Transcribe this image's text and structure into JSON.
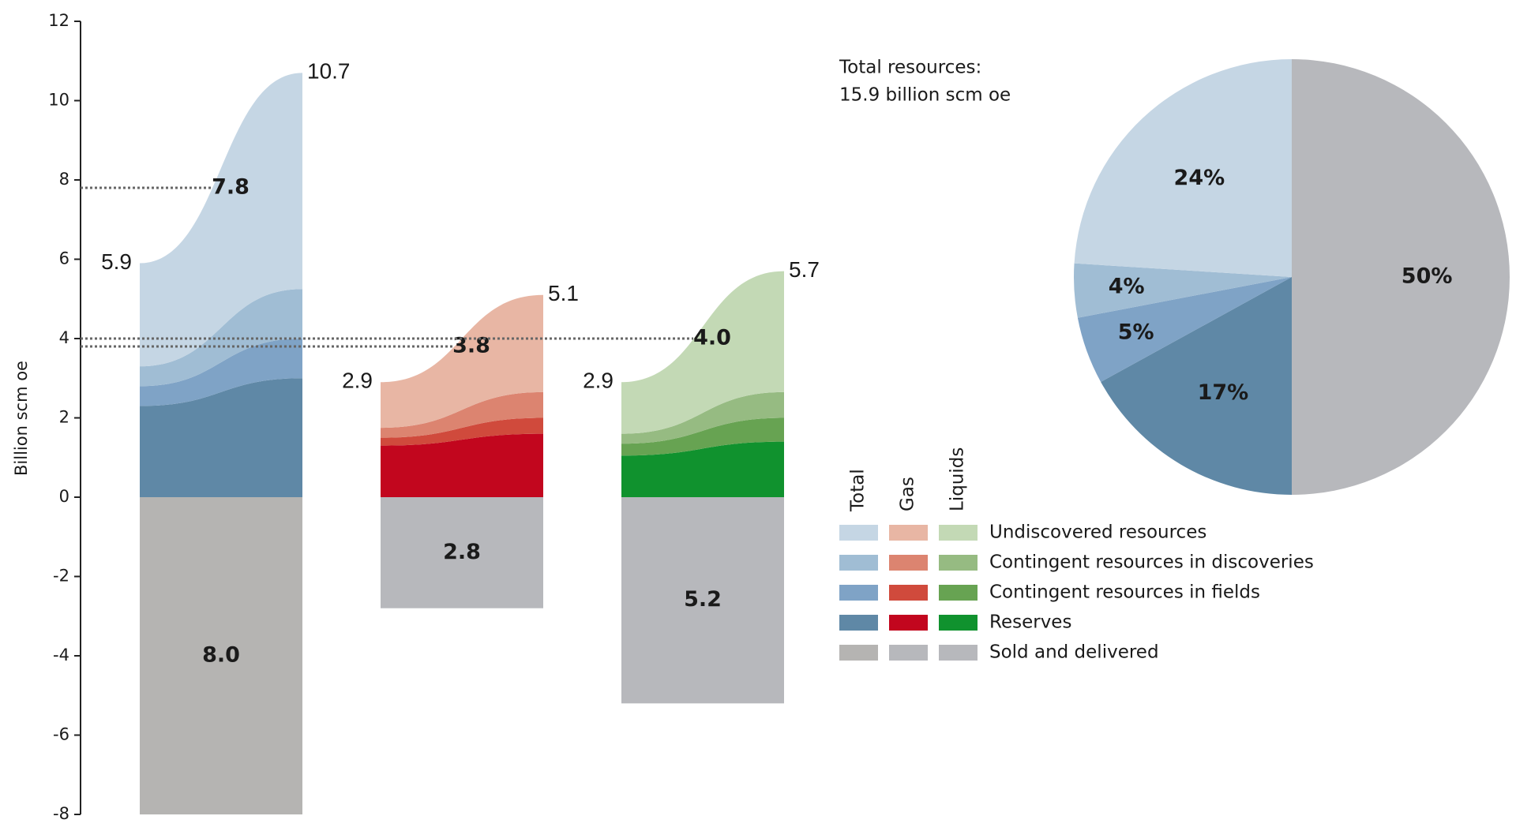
{
  "chart_data": [
    {
      "type": "range-area",
      "y_label": "Billion scm oe",
      "ylim": [
        -8,
        12
      ],
      "yticks": [
        -8,
        -6,
        -4,
        -2,
        0,
        2,
        4,
        6,
        8,
        10,
        12
      ],
      "categories": [
        "Total",
        "Gas",
        "Liquids"
      ],
      "low": [
        5.9,
        2.9,
        2.9
      ],
      "high": [
        10.7,
        5.1,
        5.7
      ],
      "expected": [
        7.8,
        3.8,
        4.0
      ],
      "expected_labels": [
        "7.8",
        "3.8",
        "4.0"
      ],
      "series": [
        {
          "name": "Undiscovered resources",
          "colors": [
            "#c5d6e4",
            "#e8b6a4",
            "#c3d9b5"
          ],
          "low": [
            2.6,
            1.15,
            1.3
          ],
          "high": [
            5.45,
            2.45,
            3.05
          ]
        },
        {
          "name": "Contingent resources in discoveries",
          "colors": [
            "#a0bdd4",
            "#dc8470",
            "#96bb82"
          ],
          "low": [
            0.5,
            0.25,
            0.25
          ],
          "high": [
            1.25,
            0.65,
            0.65
          ]
        },
        {
          "name": "Contingent resources in fields",
          "colors": [
            "#7fa3c6",
            "#d04a3c",
            "#67a352"
          ],
          "low": [
            0.5,
            0.2,
            0.3
          ],
          "high": [
            1.0,
            0.4,
            0.6
          ]
        },
        {
          "name": "Reserves",
          "colors": [
            "#5f88a6",
            "#c2061e",
            "#10922e"
          ],
          "low": [
            2.3,
            1.3,
            1.05
          ],
          "high": [
            3.0,
            1.6,
            1.4
          ]
        },
        {
          "name": "Sold and delivered",
          "colors": [
            "#b5b4b2",
            "#b7b8bc",
            "#b7b8bc"
          ],
          "values": [
            8.0,
            2.8,
            5.2
          ],
          "value_labels": [
            "8.0",
            "2.8",
            "5.2"
          ]
        }
      ]
    },
    {
      "type": "pie",
      "title": "Total resources:",
      "subtitle": "15.9 billion scm oe",
      "values": [
        50,
        17,
        5,
        4,
        24
      ],
      "value_labels": [
        "50%",
        "17%",
        "5%",
        "4%",
        "24%"
      ],
      "colors": [
        "#b7b8bc",
        "#5f88a6",
        "#7fa3c6",
        "#a0bdd4",
        "#c5d6e4"
      ]
    }
  ]
}
